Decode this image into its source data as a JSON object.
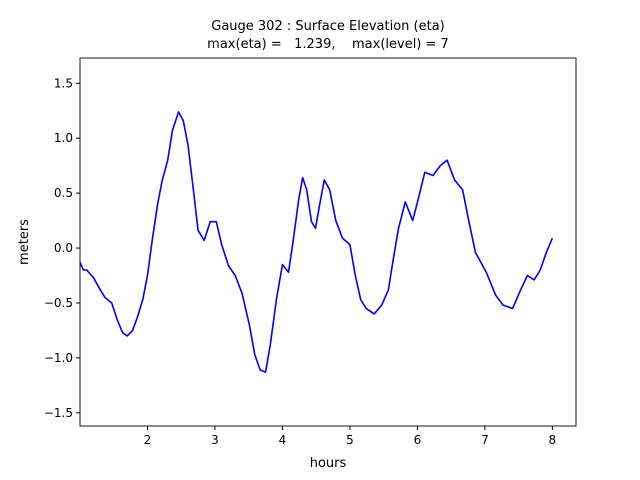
{
  "chart_data": {
    "type": "line",
    "title": "Gauge 302 : Surface Elevation (eta)",
    "subtitle": "max(eta) =   1.239,    max(level) = 7",
    "x_label": "hours",
    "y_label": "meters",
    "xlim": [
      1.0,
      8.35
    ],
    "ylim": [
      -1.62,
      1.73
    ],
    "xticks": [
      2,
      3,
      4,
      5,
      6,
      7,
      8
    ],
    "yticks": [
      {
        "value": -1.5,
        "label": "−1.5"
      },
      {
        "value": -1.0,
        "label": "−1.0"
      },
      {
        "value": -0.5,
        "label": "−0.5"
      },
      {
        "value": 0,
        "label": "0.0"
      },
      {
        "value": 0.5,
        "label": "0.5"
      },
      {
        "value": 1.0,
        "label": "1.0"
      },
      {
        "value": 1.5,
        "label": "1.5"
      }
    ],
    "grid": false,
    "x": [
      1.0,
      1.05,
      1.1,
      1.2,
      1.3,
      1.37,
      1.47,
      1.55,
      1.63,
      1.7,
      1.78,
      1.85,
      1.93,
      2.0,
      2.07,
      2.15,
      2.22,
      2.3,
      2.37,
      2.46,
      2.53,
      2.6,
      2.68,
      2.75,
      2.84,
      2.93,
      3.02,
      3.1,
      3.2,
      3.3,
      3.4,
      3.51,
      3.59,
      3.67,
      3.75,
      3.82,
      3.91,
      4.0,
      4.09,
      4.16,
      4.24,
      4.3,
      4.36,
      4.43,
      4.49,
      4.55,
      4.62,
      4.7,
      4.79,
      4.89,
      5.0,
      5.08,
      5.16,
      5.24,
      5.36,
      5.47,
      5.57,
      5.64,
      5.72,
      5.82,
      5.93,
      6.01,
      6.11,
      6.23,
      6.34,
      6.44,
      6.55,
      6.67,
      6.76,
      6.86,
      7.02,
      7.16,
      7.27,
      7.41,
      7.53,
      7.63,
      7.73,
      7.82,
      7.91,
      8.0
    ],
    "series": [
      {
        "name": "eta",
        "color": "#0000ff",
        "values": [
          -0.13,
          -0.2,
          -0.2,
          -0.27,
          -0.38,
          -0.45,
          -0.5,
          -0.65,
          -0.77,
          -0.8,
          -0.75,
          -0.63,
          -0.47,
          -0.25,
          0.07,
          0.4,
          0.62,
          0.8,
          1.07,
          1.239,
          1.16,
          0.94,
          0.53,
          0.16,
          0.07,
          0.24,
          0.24,
          0.03,
          -0.16,
          -0.25,
          -0.41,
          -0.7,
          -0.97,
          -1.11,
          -1.13,
          -0.88,
          -0.47,
          -0.15,
          -0.22,
          0.07,
          0.44,
          0.64,
          0.53,
          0.24,
          0.18,
          0.39,
          0.62,
          0.53,
          0.25,
          0.09,
          0.03,
          -0.25,
          -0.47,
          -0.55,
          -0.6,
          -0.52,
          -0.38,
          -0.11,
          0.18,
          0.42,
          0.25,
          0.44,
          0.69,
          0.66,
          0.75,
          0.8,
          0.62,
          0.53,
          0.25,
          -0.04,
          -0.22,
          -0.43,
          -0.52,
          -0.55,
          -0.38,
          -0.25,
          -0.29,
          -0.2,
          -0.04,
          0.09
        ]
      }
    ]
  }
}
